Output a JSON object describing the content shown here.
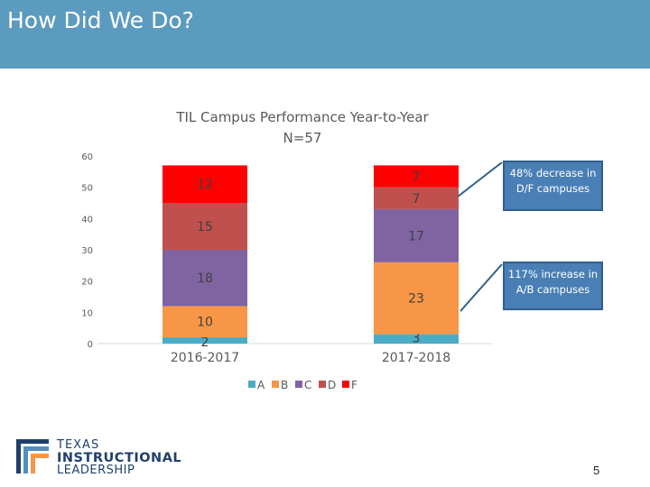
{
  "header": {
    "title": "How Did We Do?"
  },
  "chart_data": {
    "type": "bar",
    "stacked": true,
    "title": "TIL Campus Performance Year-to-Year",
    "subtitle": "N=57",
    "categories": [
      "2016-2017",
      "2017-2018"
    ],
    "ylim": [
      0,
      60
    ],
    "yticks": [
      0,
      10,
      20,
      30,
      40,
      50,
      60
    ],
    "grid": false,
    "legend": "bottom",
    "series": [
      {
        "name": "A",
        "values": [
          2,
          3
        ],
        "color": "#4bacc6"
      },
      {
        "name": "B",
        "values": [
          10,
          23
        ],
        "color": "#f79646"
      },
      {
        "name": "C",
        "values": [
          18,
          17
        ],
        "color": "#8064a2"
      },
      {
        "name": "D",
        "values": [
          15,
          7
        ],
        "color": "#c0504d"
      },
      {
        "name": "F",
        "values": [
          12,
          7
        ],
        "color": "#ff0000"
      }
    ],
    "annotations": [
      "48% decrease in D/F campuses",
      "117% increase in A/B campuses"
    ]
  },
  "callouts": {
    "first": "48% decrease in D/F campuses",
    "second": "117% increase in A/B campuses"
  },
  "logo": {
    "line1": "TEXAS",
    "line2": "INSTRUCTIONAL",
    "line3": "LEADERSHIP",
    "colors": [
      "#1f3f6a",
      "#4f8fc0",
      "#f79646"
    ]
  },
  "page_number": "5"
}
